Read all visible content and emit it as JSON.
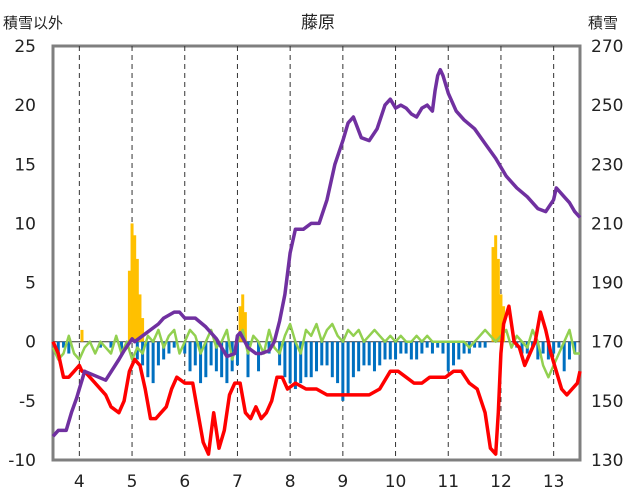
{
  "chart_data": {
    "type": "line",
    "title": "藤原",
    "ylabel_left": "積雪以外",
    "ylabel_right": "積雪",
    "ylim_left": [
      -10,
      25
    ],
    "ylim_right": [
      130,
      270
    ],
    "xlim": [
      3.5,
      13.5
    ],
    "x_ticks": [
      "4",
      "5",
      "6",
      "7",
      "8",
      "9",
      "10",
      "11",
      "12",
      "13"
    ],
    "y_ticks_left": [
      "25",
      "20",
      "15",
      "10",
      "5",
      "0",
      "-5",
      "-10"
    ],
    "y_ticks_right": [
      "270",
      "250",
      "230",
      "210",
      "190",
      "170",
      "150",
      "130"
    ],
    "grid": "vertical dashed at each day",
    "colors": {
      "snow_depth": "#7030a0",
      "temperature": "#ff0000",
      "precip": "#ffc000",
      "snow_change": "#0070c0",
      "green": "#92d050"
    },
    "series": [
      {
        "axis": "right",
        "kind": "line",
        "color": "#7030a0",
        "x": [
          3.5,
          3.6,
          3.75,
          3.85,
          3.95,
          4.0,
          4.05,
          4.1,
          4.5,
          4.75,
          4.85,
          5.0,
          5.05,
          5.2,
          5.35,
          5.5,
          5.6,
          5.8,
          5.9,
          6.0,
          6.2,
          6.4,
          6.6,
          6.8,
          6.95,
          7.0,
          7.05,
          7.2,
          7.35,
          7.45,
          7.6,
          7.7,
          7.8,
          7.9,
          8.0,
          8.1,
          8.25,
          8.4,
          8.55,
          8.7,
          8.85,
          9.0,
          9.1,
          9.2,
          9.35,
          9.5,
          9.65,
          9.8,
          9.9,
          10.0,
          10.1,
          10.2,
          10.3,
          10.4,
          10.5,
          10.6,
          10.7,
          10.75,
          10.8,
          10.85,
          10.9,
          11.0,
          11.15,
          11.3,
          11.5,
          11.7,
          11.9,
          12.1,
          12.3,
          12.5,
          12.7,
          12.85,
          13.0,
          13.05,
          13.2,
          13.3,
          13.4,
          13.5
        ],
        "y": [
          138,
          140,
          140,
          146,
          151,
          154,
          157,
          160,
          157,
          164,
          167,
          171,
          170,
          172,
          174,
          176,
          178,
          180,
          180,
          178,
          178,
          175,
          171,
          165,
          166,
          172,
          173,
          168,
          166,
          166,
          167,
          170,
          177,
          186,
          200,
          208,
          208,
          210,
          210,
          218,
          230,
          238,
          244,
          246,
          239,
          238,
          242,
          250,
          252,
          249,
          250,
          249,
          247,
          246,
          249,
          250,
          248,
          255,
          260,
          262,
          260,
          254,
          248,
          245,
          242,
          237,
          232,
          226,
          222,
          219,
          215,
          214,
          218,
          222,
          219,
          217,
          214,
          212
        ]
      },
      {
        "axis": "left",
        "kind": "line",
        "color": "#ff0000",
        "x": [
          3.5,
          3.6,
          3.7,
          3.8,
          3.9,
          4.0,
          4.05,
          4.1,
          4.5,
          4.6,
          4.75,
          4.85,
          4.95,
          5.05,
          5.15,
          5.25,
          5.35,
          5.45,
          5.55,
          5.65,
          5.75,
          5.85,
          6.0,
          6.15,
          6.25,
          6.35,
          6.45,
          6.55,
          6.65,
          6.75,
          6.85,
          6.95,
          7.05,
          7.15,
          7.25,
          7.35,
          7.45,
          7.55,
          7.65,
          7.75,
          7.85,
          7.95,
          8.1,
          8.3,
          8.5,
          8.7,
          8.9,
          9.1,
          9.3,
          9.5,
          9.7,
          9.9,
          10.05,
          10.2,
          10.35,
          10.5,
          10.65,
          10.8,
          10.95,
          11.1,
          11.25,
          11.4,
          11.55,
          11.7,
          11.8,
          11.9,
          11.95,
          12.0,
          12.05,
          12.15,
          12.25,
          12.35,
          12.45,
          12.55,
          12.65,
          12.75,
          12.85,
          12.95,
          13.05,
          13.15,
          13.25,
          13.35,
          13.45,
          13.5
        ],
        "y": [
          0,
          -1,
          -3,
          -3,
          -2.5,
          -2,
          -2.5,
          -2.5,
          -4.5,
          -5.5,
          -6,
          -5,
          -2.5,
          -1.5,
          -2,
          -4,
          -6.5,
          -6.5,
          -6,
          -5.5,
          -4,
          -3,
          -3.5,
          -3.5,
          -6,
          -8.5,
          -9.5,
          -6,
          -9,
          -7.5,
          -4.5,
          -3.5,
          -3.5,
          -6,
          -6.5,
          -5.5,
          -6.5,
          -6,
          -5,
          -3,
          -3,
          -4,
          -3.5,
          -4,
          -4,
          -4.5,
          -4.5,
          -4.5,
          -4.5,
          -4.5,
          -4,
          -2.5,
          -2.5,
          -3,
          -3.5,
          -3.5,
          -3,
          -3,
          -3,
          -2.5,
          -2.5,
          -3.5,
          -4,
          -6,
          -9,
          -9.5,
          -6,
          -1,
          1.5,
          3,
          0,
          -0.5,
          -2,
          -1,
          0,
          2.5,
          1,
          -1,
          -2.5,
          -4,
          -4.5,
          -4,
          -3.5,
          -2.5
        ]
      },
      {
        "axis": "left",
        "kind": "bar",
        "color": "#ffc000",
        "x": [
          4.05,
          4.95,
          5.0,
          5.05,
          5.1,
          5.15,
          5.2,
          7.05,
          7.1,
          7.15,
          11.85,
          11.9,
          11.95,
          12.0,
          12.05
        ],
        "y": [
          1,
          6,
          10,
          9,
          7,
          4,
          2,
          3,
          4,
          2.5,
          8,
          9,
          7,
          4,
          3
        ]
      },
      {
        "axis": "left",
        "kind": "bar",
        "color": "#0070c0",
        "x": [
          3.6,
          3.7,
          3.8,
          4.4,
          4.6,
          4.8,
          5.1,
          5.2,
          5.3,
          5.4,
          5.5,
          5.6,
          5.7,
          5.8,
          6.0,
          6.1,
          6.2,
          6.3,
          6.4,
          6.5,
          6.6,
          6.7,
          6.8,
          6.9,
          7.0,
          7.2,
          7.4,
          7.6,
          7.8,
          7.9,
          8.0,
          8.1,
          8.2,
          8.3,
          8.4,
          8.5,
          8.6,
          8.7,
          8.8,
          8.9,
          9.0,
          9.1,
          9.2,
          9.3,
          9.4,
          9.5,
          9.6,
          9.7,
          9.8,
          9.9,
          10.0,
          10.1,
          10.2,
          10.3,
          10.4,
          10.5,
          10.6,
          10.7,
          10.8,
          10.9,
          11.0,
          11.1,
          11.2,
          11.3,
          11.4,
          11.5,
          11.6,
          11.7,
          12.3,
          12.4,
          12.5,
          12.6,
          12.7,
          12.8,
          12.9,
          13.0,
          13.1,
          13.2,
          13.3,
          13.4
        ],
        "y": [
          -1,
          -0.5,
          -1,
          -0.5,
          -0.5,
          -1,
          -1.5,
          -2,
          -3,
          -3.5,
          -2,
          -1.5,
          -1,
          -0.5,
          -1,
          -2.5,
          -2,
          -3.5,
          -3,
          -2,
          -2.5,
          -3,
          -3.5,
          -2.5,
          -2,
          -3,
          -2.5,
          -1,
          -2,
          -3,
          -3.5,
          -4,
          -3.5,
          -3,
          -3,
          -2.5,
          -2,
          -2,
          -3,
          -3.5,
          -5,
          -4.5,
          -3,
          -2.5,
          -2,
          -2,
          -2.5,
          -2,
          -1.5,
          -1.5,
          -1.5,
          -1,
          -1,
          -1.5,
          -1.5,
          -1,
          -0.5,
          -1,
          -0.5,
          -1,
          -2.5,
          -2,
          -1.5,
          -1,
          -1,
          -0.5,
          -0.5,
          -0.5,
          -0.5,
          -1,
          -1,
          -0.5,
          -1.5,
          -1,
          -1.5,
          -1,
          -0.5,
          -2.5,
          -1.5,
          -1
        ]
      },
      {
        "axis": "left",
        "kind": "line",
        "color": "#92d050",
        "x": [
          3.5,
          3.6,
          3.7,
          3.8,
          3.9,
          4.0,
          4.1,
          4.2,
          4.3,
          4.4,
          4.5,
          4.6,
          4.7,
          4.8,
          4.9,
          5.0,
          5.1,
          5.2,
          5.3,
          5.4,
          5.5,
          5.6,
          5.7,
          5.8,
          5.9,
          6.0,
          6.1,
          6.2,
          6.3,
          6.4,
          6.5,
          6.6,
          6.7,
          6.8,
          6.9,
          7.0,
          7.1,
          7.2,
          7.3,
          7.4,
          7.5,
          7.6,
          7.7,
          7.8,
          7.9,
          8.0,
          8.1,
          8.2,
          8.3,
          8.4,
          8.5,
          8.6,
          8.7,
          8.8,
          8.9,
          9.0,
          9.1,
          9.2,
          9.3,
          9.4,
          9.5,
          9.6,
          9.7,
          9.8,
          9.9,
          10.0,
          10.1,
          10.2,
          10.3,
          10.4,
          10.5,
          10.6,
          10.7,
          10.8,
          10.9,
          11.0,
          11.1,
          11.2,
          11.3,
          11.4,
          11.5,
          11.6,
          11.7,
          11.8,
          11.9,
          12.0,
          12.1,
          12.2,
          12.3,
          12.4,
          12.5,
          12.6,
          12.7,
          12.8,
          12.9,
          13.0,
          13.1,
          13.2,
          13.3,
          13.4,
          13.5
        ],
        "y": [
          -0.5,
          -1.5,
          -1,
          0.5,
          -1,
          -1.5,
          -0.5,
          0,
          -1,
          0,
          -0.5,
          -1,
          0.5,
          -1,
          0,
          -1.5,
          -0.5,
          -1,
          0.5,
          0,
          1,
          -0.5,
          0.5,
          1,
          -1,
          0,
          1,
          0.5,
          -1,
          0,
          1,
          -0.5,
          0,
          1,
          -1.5,
          0,
          1,
          -1,
          0.5,
          0,
          -1,
          1,
          -0.5,
          -1,
          0.5,
          1.5,
          0,
          -1,
          1,
          0.5,
          1.5,
          0,
          1,
          1.5,
          0.5,
          0,
          1,
          0.5,
          1,
          0,
          0.5,
          1,
          0.5,
          0,
          0.5,
          0,
          0.5,
          0,
          0,
          0.5,
          0,
          0.5,
          0,
          0,
          0,
          0,
          0,
          0,
          0,
          -0.5,
          0,
          0.5,
          1,
          0.5,
          0,
          0.5,
          1,
          -0.5,
          0.5,
          0,
          -0.5,
          1,
          0,
          -2,
          -3,
          -2,
          -1,
          0,
          1,
          -1,
          -1
        ]
      }
    ]
  }
}
